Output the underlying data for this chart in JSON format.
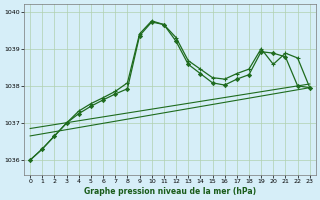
{
  "title": "Graphe pression niveau de la mer (hPa)",
  "background_color": "#d6eef8",
  "grid_color": "#b0d0b0",
  "line_color": "#1e6b1e",
  "xlim": [
    -0.5,
    23.5
  ],
  "ylim": [
    1035.6,
    1040.2
  ],
  "yticks": [
    1036,
    1037,
    1038,
    1039,
    1040
  ],
  "xticks": [
    0,
    1,
    2,
    3,
    4,
    5,
    6,
    7,
    8,
    9,
    10,
    11,
    12,
    13,
    14,
    15,
    16,
    17,
    18,
    19,
    20,
    21,
    22,
    23
  ],
  "series1_x": [
    0,
    1,
    2,
    3,
    4,
    5,
    6,
    7,
    8,
    9,
    10,
    11,
    12,
    13,
    14,
    15,
    16,
    17,
    18,
    19,
    20,
    21,
    22,
    23
  ],
  "series1_y": [
    1036.0,
    1036.3,
    1036.65,
    1037.0,
    1037.25,
    1037.45,
    1037.62,
    1037.78,
    1037.92,
    1039.35,
    1039.72,
    1039.65,
    1039.2,
    1038.58,
    1038.33,
    1038.08,
    1038.02,
    1038.18,
    1038.3,
    1038.92,
    1038.88,
    1038.78,
    1038.0,
    1037.95
  ],
  "series2_x": [
    0,
    1,
    2,
    3,
    4,
    5,
    6,
    7,
    8,
    9,
    10,
    11,
    12,
    13,
    14,
    15,
    16,
    17,
    18,
    19,
    20,
    21,
    22,
    23
  ],
  "series2_y": [
    1036.0,
    1036.3,
    1036.65,
    1037.0,
    1037.32,
    1037.52,
    1037.68,
    1037.85,
    1038.08,
    1039.4,
    1039.75,
    1039.65,
    1039.3,
    1038.68,
    1038.45,
    1038.22,
    1038.18,
    1038.33,
    1038.45,
    1039.0,
    1038.58,
    1038.88,
    1038.75,
    1037.95
  ],
  "series3_x": [
    0,
    23
  ],
  "series3_y": [
    1036.85,
    1038.05
  ],
  "series4_x": [
    0,
    23
  ],
  "series4_y": [
    1036.65,
    1037.95
  ]
}
